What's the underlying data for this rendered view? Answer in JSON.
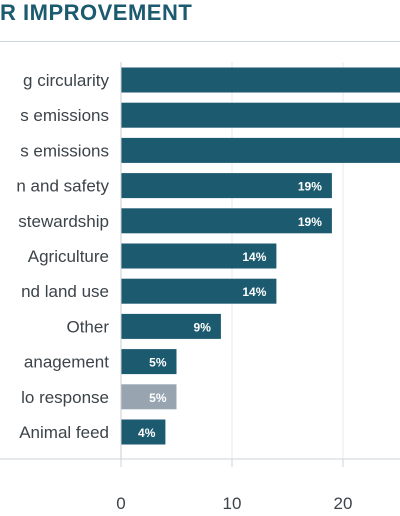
{
  "title": "R IMPROVEMENT",
  "chart_data": {
    "type": "bar",
    "orientation": "horizontal",
    "title": "R IMPROVEMENT",
    "categories": [
      "g circularity",
      "s emissions",
      "s emissions",
      "n and safety",
      "stewardship",
      "Agriculture",
      "nd land use",
      "Other",
      "anagement",
      "lo response",
      "Animal feed"
    ],
    "values": [
      null,
      null,
      null,
      19,
      19,
      14,
      14,
      9,
      5,
      5,
      4
    ],
    "value_labels": [
      "",
      "",
      "",
      "19%",
      "19%",
      "14%",
      "14%",
      "9%",
      "5%",
      "5%",
      "4%"
    ],
    "bar_colors": [
      "#1c5a6f",
      "#1c5a6f",
      "#1c5a6f",
      "#1c5a6f",
      "#1c5a6f",
      "#1c5a6f",
      "#1c5a6f",
      "#1c5a6f",
      "#1c5a6f",
      "#98a5b1",
      "#1c5a6f"
    ],
    "x_ticks": [
      "0",
      "10",
      "20"
    ],
    "xlim": [
      0,
      25
    ],
    "grid": true
  }
}
